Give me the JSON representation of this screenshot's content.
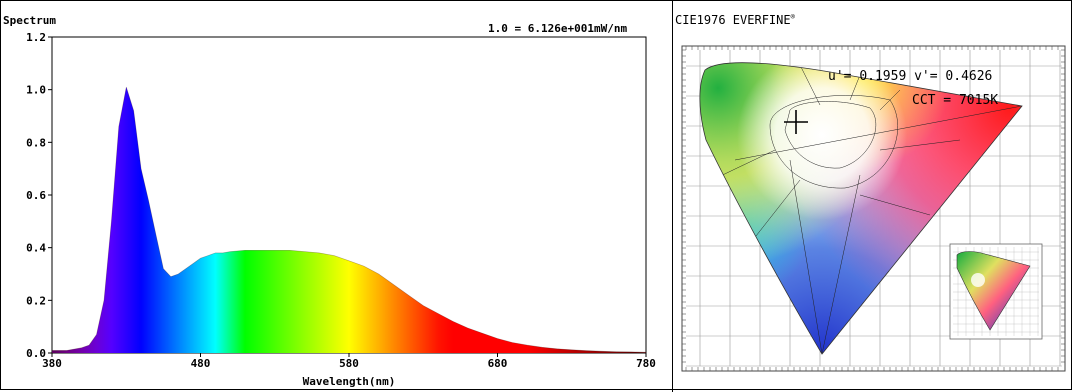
{
  "chart_data": [
    {
      "type": "area",
      "title": "Spectrum",
      "scale_note": "1.0 = 6.126e+001mW/nm",
      "xlabel": "Wavelength(nm)",
      "ylabel": "",
      "xlim": [
        380,
        780
      ],
      "ylim": [
        0,
        1.2
      ],
      "x_ticks": [
        "380",
        "480",
        "580",
        "680",
        "780"
      ],
      "y_ticks": [
        "0.0",
        "0.2",
        "0.4",
        "0.6",
        "0.8",
        "1.0",
        "1.2"
      ],
      "x": [
        380,
        390,
        400,
        405,
        410,
        415,
        420,
        425,
        430,
        435,
        440,
        445,
        450,
        455,
        460,
        465,
        470,
        475,
        480,
        485,
        490,
        495,
        500,
        510,
        520,
        530,
        540,
        550,
        560,
        570,
        580,
        590,
        600,
        610,
        620,
        630,
        640,
        650,
        660,
        670,
        680,
        690,
        700,
        710,
        720,
        730,
        740,
        750,
        760,
        770,
        780
      ],
      "series": [
        {
          "values": [
            0.01,
            0.01,
            0.02,
            0.03,
            0.07,
            0.2,
            0.5,
            0.86,
            1.01,
            0.92,
            0.7,
            0.58,
            0.45,
            0.32,
            0.29,
            0.3,
            0.32,
            0.34,
            0.36,
            0.37,
            0.38,
            0.38,
            0.385,
            0.39,
            0.39,
            0.39,
            0.39,
            0.385,
            0.38,
            0.37,
            0.35,
            0.33,
            0.3,
            0.26,
            0.22,
            0.18,
            0.15,
            0.12,
            0.095,
            0.075,
            0.055,
            0.04,
            0.03,
            0.022,
            0.016,
            0.012,
            0.009,
            0.007,
            0.005,
            0.004,
            0.003
          ]
        }
      ]
    },
    {
      "type": "diagram",
      "title": "CIE1976 EVERFINE",
      "title_mark": "®",
      "readout": {
        "u_label": "u'=",
        "u_value": "0.1959",
        "v_label": "v'=",
        "v_value": "0.4626",
        "cct_label": "CCT =",
        "cct_value": "7015K"
      },
      "point": {
        "u": 0.1959,
        "v": 0.4626
      },
      "colors": {
        "red": "#ff1a1a",
        "green": "#22b040",
        "blue": "#2233cc",
        "white": "#ffffff"
      }
    }
  ]
}
